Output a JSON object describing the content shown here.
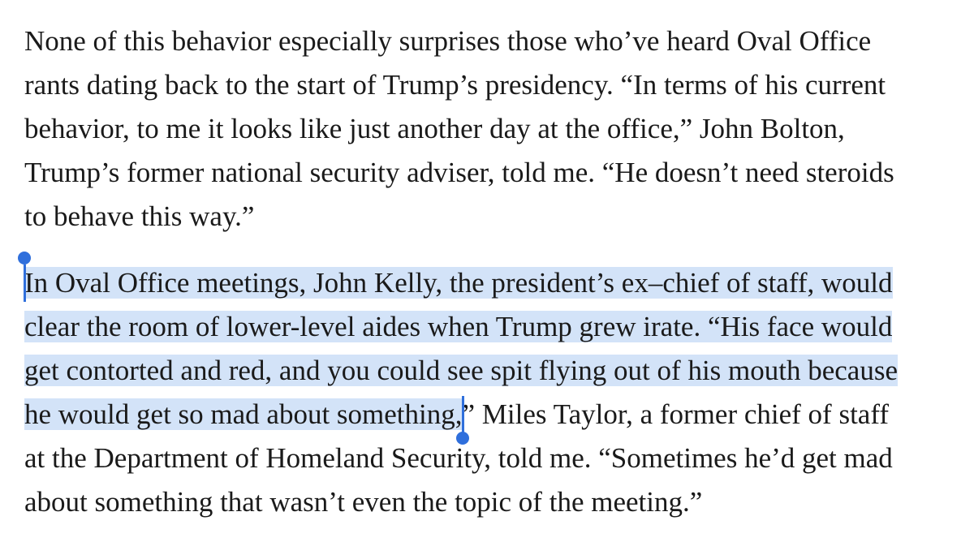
{
  "article": {
    "paragraph1": {
      "lines": [
        "None of this behavior especially surprises those who’ve heard Oval Office",
        "rants dating back to the start of Trump’s presidency. “In terms of his current",
        "behavior, to me it looks like just another day at the office,” John Bolton,",
        "Trump’s former national security adviser, told me. “He doesn’t need steroids",
        "to behave this way.”"
      ]
    },
    "paragraph2": {
      "line1_selected": "In Oval Office meetings, John Kelly, the president’s ex–chief of staff, would",
      "line2_selected": "clear the room of lower-level aides when Trump grew irate. “His face would",
      "line3_selected": "get contorted and red, and you could see spit flying out of his mouth because",
      "line4_selected": "he would get so mad about something,",
      "line4_rest": "” Miles Taylor, a former chief of staff",
      "line5": "at the Department of Homeland Security, told me. “Sometimes he’d get mad",
      "line6": "about something that wasn’t even the topic of the meeting.”"
    },
    "selection_color": "#d3e3f8",
    "handle_color": "#2f6fdc",
    "text_color": "#1a1a1a"
  }
}
